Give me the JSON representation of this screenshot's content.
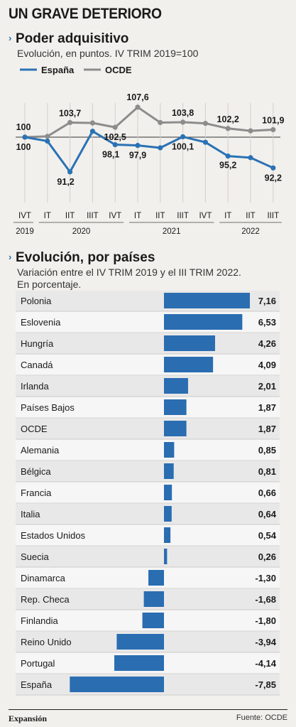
{
  "title": "UN GRAVE DETERIORO",
  "section1": {
    "title": "Poder adquisitivo",
    "subtitle": "Evolución, en puntos. IV TRIM 2019=100"
  },
  "section2": {
    "title": "Evolución, por países",
    "subtitle_line1": "Variación entre el IV TRIM 2019 y el III TRIM 2022.",
    "subtitle_line2": "En porcentaje."
  },
  "footer": {
    "brand": "Expansión",
    "source": "Fuente: OCDE"
  },
  "colors": {
    "spain": "#2a72b5",
    "ocde": "#8c8c8c",
    "bar": "#2a6db1"
  },
  "chart_data": [
    {
      "type": "line",
      "x": [
        "IVT",
        "IT",
        "IIT",
        "IIIT",
        "IVT",
        "IT",
        "IIT",
        "IIIT",
        "IVT",
        "IT",
        "IIT",
        "IIIT"
      ],
      "year_labels": [
        "2019",
        "2020",
        "2021",
        "2022"
      ],
      "series": [
        {
          "name": "España",
          "values": [
            100,
            99.0,
            91.2,
            101.5,
            98.1,
            97.9,
            97.3,
            100.1,
            98.7,
            95.2,
            94.8,
            92.2
          ],
          "data_labels": {
            "0": "100",
            "2": "91,2",
            "4": "98,1",
            "5": "97,9",
            "7": "100,1",
            "9": "95,2",
            "11": "92,2"
          }
        },
        {
          "name": "OCDE",
          "values": [
            100,
            100.2,
            103.7,
            103.6,
            102.5,
            107.6,
            103.7,
            103.8,
            103.5,
            102.2,
            101.6,
            101.9
          ],
          "data_labels": {
            "0": "100",
            "2": "103,7",
            "4": "102,5",
            "5": "107,6",
            "7": "103,8",
            "9": "102,2",
            "11": "101,9"
          }
        }
      ],
      "baseline": 100,
      "ylim": [
        90,
        109
      ]
    },
    {
      "type": "bar",
      "orientation": "horizontal",
      "categories": [
        "Polonia",
        "Eslovenia",
        "Hungría",
        "Canadá",
        "Irlanda",
        "Países Bajos",
        "OCDE",
        "Alemania",
        "Bélgica",
        "Francia",
        "Italia",
        "Estados Unidos",
        "Suecia",
        "Dinamarca",
        "Rep. Checa",
        "Finlandia",
        "Reino Unido",
        "Portugal",
        "España"
      ],
      "values": [
        7.16,
        6.53,
        4.26,
        4.09,
        2.01,
        1.87,
        1.87,
        0.85,
        0.81,
        0.66,
        0.64,
        0.54,
        0.26,
        -1.3,
        -1.68,
        -1.8,
        -3.94,
        -4.14,
        -7.85
      ],
      "value_labels": [
        "7,16",
        "6,53",
        "4,26",
        "4,09",
        "2,01",
        "1,87",
        "1,87",
        "0,85",
        "0,81",
        "0,66",
        "0,64",
        "0,54",
        "0,26",
        "-1,30",
        "-1,68",
        "-1,80",
        "-3,94",
        "-4,14",
        "-7,85"
      ]
    }
  ]
}
